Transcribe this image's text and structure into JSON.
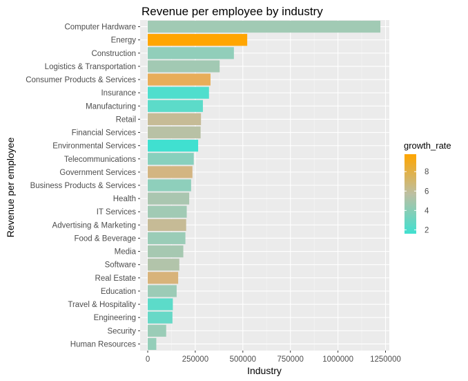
{
  "chart_data": {
    "type": "bar",
    "orientation": "horizontal",
    "title": "Revenue per employee by industry",
    "xlabel": "Industry",
    "ylabel": "Revenue per employee",
    "xlim": [
      -40000,
      1270000
    ],
    "xticks": [
      0,
      250000,
      500000,
      750000,
      1000000,
      1250000
    ],
    "xtick_labels": [
      "0",
      "250000",
      "500000",
      "750000",
      "1000000",
      "1250000"
    ],
    "grid": true,
    "legend": {
      "title": "growth_rate",
      "placement": "right",
      "type": "colorbar",
      "min": 1.6,
      "max": 9.8,
      "ticks": [
        2,
        4,
        6,
        8
      ],
      "tick_labels": [
        "2",
        "4",
        "6",
        "8"
      ],
      "low_color": "#40E0D0",
      "high_color": "#FFA500"
    },
    "categories": [
      "Computer Hardware",
      "Energy",
      "Construction",
      "Logistics & Transportation",
      "Consumer Products & Services",
      "Insurance",
      "Manufacturing",
      "Retail",
      "Financial Services",
      "Environmental Services",
      "Telecommunications",
      "Government Services",
      "Business Products & Services",
      "Health",
      "IT Services",
      "Advertising & Marketing",
      "Food & Beverage",
      "Media",
      "Software",
      "Real Estate",
      "Education",
      "Travel & Hospitality",
      "Engineering",
      "Security",
      "Human Resources"
    ],
    "values": [
      1223000,
      523000,
      453000,
      378000,
      330000,
      322000,
      290000,
      280000,
      278000,
      265000,
      242000,
      235000,
      228000,
      218000,
      205000,
      202000,
      198000,
      187000,
      166000,
      160000,
      152000,
      132000,
      130000,
      97000,
      45000
    ],
    "growth_rate": [
      3.9,
      9.8,
      3.3,
      4.0,
      8.8,
      1.8,
      2.0,
      6.6,
      5.4,
      1.6,
      3.0,
      7.6,
      3.2,
      4.4,
      3.9,
      6.6,
      3.6,
      4.2,
      4.9,
      7.9,
      3.7,
      2.0,
      2.2,
      3.6,
      3.4
    ],
    "colors": {
      "panel_background": "#EBEBEB",
      "grid_major": "#FFFFFF",
      "grid_minor": "#F5F5F5"
    }
  }
}
